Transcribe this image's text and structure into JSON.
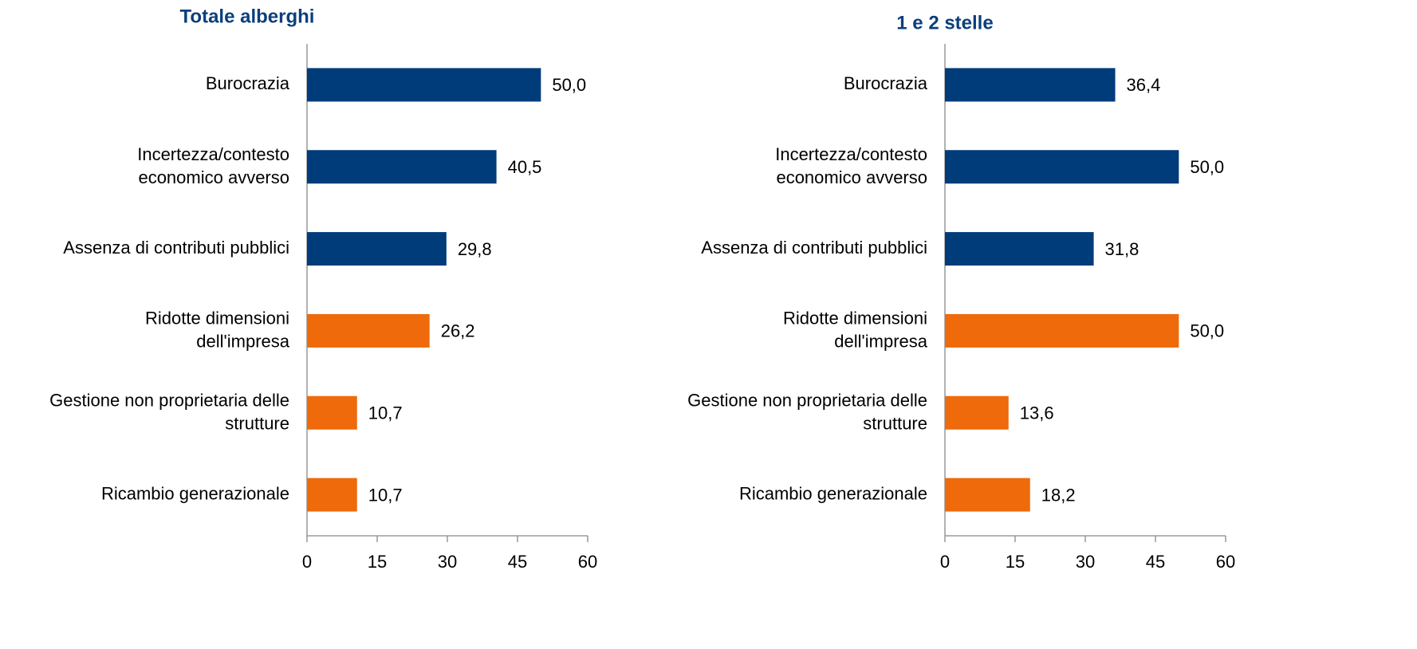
{
  "chart_data": [
    {
      "type": "bar",
      "orientation": "horizontal",
      "title": "Totale alberghi",
      "categories": [
        "Burocrazia",
        "Incertezza/contesto\neconomico avverso",
        "Assenza di contributi pubblici",
        "Ridotte dimensioni\ndell'impresa",
        "Gestione non proprietaria delle\nstrutture",
        "Ricambio generazionale"
      ],
      "values": [
        50.0,
        40.5,
        29.8,
        26.2,
        10.7,
        10.7
      ],
      "value_labels": [
        "50,0",
        "40,5",
        "29,8",
        "26,2",
        "10,7",
        "10,7"
      ],
      "colors": [
        "#003b7a",
        "#003b7a",
        "#003b7a",
        "#ee6a0b",
        "#ee6a0b",
        "#ee6a0b"
      ],
      "xlim": [
        0,
        60
      ],
      "xticks": [
        0,
        15,
        30,
        45,
        60
      ],
      "grid": false
    },
    {
      "type": "bar",
      "orientation": "horizontal",
      "title": "1 e 2 stelle",
      "categories": [
        "Burocrazia",
        "Incertezza/contesto\neconomico avverso",
        "Assenza di contributi pubblici",
        "Ridotte dimensioni\ndell'impresa",
        "Gestione non proprietaria delle\nstrutture",
        "Ricambio generazionale"
      ],
      "values": [
        36.4,
        50.0,
        31.8,
        50.0,
        13.6,
        18.2
      ],
      "value_labels": [
        "36,4",
        "50,0",
        "31,8",
        "50,0",
        "13,6",
        "18,2"
      ],
      "colors": [
        "#003b7a",
        "#003b7a",
        "#003b7a",
        "#ee6a0b",
        "#ee6a0b",
        "#ee6a0b"
      ],
      "xlim": [
        0,
        60
      ],
      "xticks": [
        0,
        15,
        30,
        45,
        60
      ],
      "grid": false
    }
  ]
}
